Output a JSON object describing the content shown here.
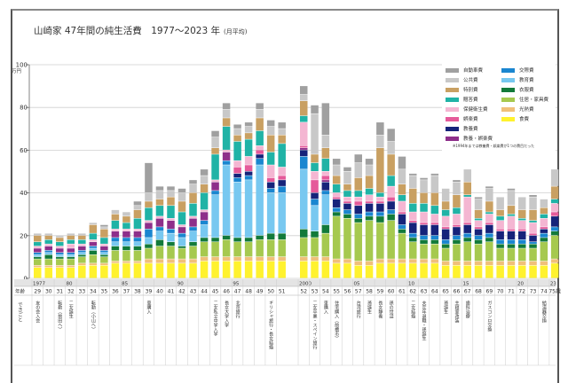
{
  "title": "山崎家 47年間の純生活費　1977〜2023 年",
  "title_note": "(月平均)",
  "chart_data": {
    "type": "bar",
    "stacked": true,
    "title": "山崎家 47年間の純生活費　1977〜2023 年 (月平均)",
    "ylabel": "万円",
    "ylim": [
      0,
      100
    ],
    "yticks": [
      "0",
      "20",
      "40",
      "60",
      "80",
      "100"
    ],
    "grid": true,
    "legend_position": "top-right",
    "legend_note": "※1994年までは教養費・娯楽費が1つの費目だった",
    "row_labels": {
      "year": "年",
      "age": "年齢",
      "events": "できごと"
    },
    "age_suffix": "歳",
    "year_ticks": {
      "1977": "1977",
      "1980": "80",
      "1985": "85",
      "1990": "90",
      "1995": "95",
      "2000": "2000",
      "2005": "05",
      "2010": "10",
      "2015": "15",
      "2020": "20",
      "2023": "23"
    },
    "years": [
      1977,
      1978,
      1979,
      1980,
      1981,
      1982,
      1983,
      1984,
      1985,
      1986,
      1987,
      1988,
      1989,
      1990,
      1991,
      1992,
      1993,
      1994,
      1995,
      1996,
      1997,
      1998,
      1999,
      2000,
      2001,
      2002,
      2003,
      2004,
      2005,
      2006,
      2007,
      2008,
      2009,
      2010,
      2011,
      2012,
      2013,
      2014,
      2015,
      2016,
      2017,
      2018,
      2019,
      2020,
      2021,
      2022,
      2023
    ],
    "ages": [
      29,
      30,
      31,
      32,
      33,
      34,
      35,
      36,
      37,
      38,
      39,
      40,
      41,
      42,
      43,
      44,
      45,
      46,
      47,
      48,
      49,
      50,
      51,
      52,
      53,
      54,
      55,
      56,
      57,
      58,
      59,
      60,
      61,
      62,
      63,
      64,
      65,
      66,
      67,
      68,
      69,
      70,
      71,
      72,
      73,
      74,
      75
    ],
    "events": {
      "29": "友の会入会",
      "31": "転勤（前田へ）",
      "32": "二女誕生",
      "34": "転勤（小山へ）",
      "39": "車購入",
      "45": "二女私立中学入学",
      "46": "長女大学入学",
      "47": "北京旅行",
      "50": "ギリシャ旅行・長女結婚",
      "53": "二女卒業・スペイン旅行",
      "54": "車購入",
      "55": "住宅購入（前橋市）",
      "57": "台湾旅行",
      "58": "孫誕生",
      "59": "長女静養",
      "60": "孫の世話",
      "62": "二女結婚",
      "63": "夫定年退職・孫誕生",
      "65": "孫誕生",
      "66": "主寝室改装",
      "67": "歯科治療",
      "69": "ガスコンロ交換",
      "74": "給湯器交換"
    },
    "totals": [
      21,
      21,
      20,
      20,
      21,
      26,
      25,
      32,
      30,
      36,
      54,
      43,
      45,
      42,
      47,
      51,
      69,
      82,
      72,
      73,
      82,
      78,
      73,
      94,
      83,
      87,
      56,
      49,
      58,
      54,
      73,
      72,
      52,
      49,
      47,
      49,
      42,
      44,
      51,
      37,
      43,
      38,
      38,
      38,
      37,
      39,
      55
    ],
    "series": [
      {
        "name": "食費",
        "color": "#fff22e",
        "values": [
          5,
          5,
          5,
          5,
          6,
          6,
          6,
          7,
          7,
          7,
          7,
          7,
          7,
          7,
          7,
          8,
          8,
          8,
          8,
          8,
          8,
          8,
          8,
          8,
          8,
          8,
          7,
          7,
          6,
          6,
          7,
          7,
          7,
          7,
          7,
          7,
          6,
          6,
          6,
          6,
          6,
          6,
          6,
          6,
          6,
          6,
          7
        ]
      },
      {
        "name": "光熱費",
        "color": "#f0c07a",
        "values": [
          1,
          1,
          1,
          1,
          1,
          1,
          1,
          1,
          1,
          1,
          2,
          2,
          2,
          2,
          2,
          2,
          2,
          2,
          2,
          2,
          2,
          2,
          2,
          2,
          2,
          2,
          2,
          2,
          2,
          2,
          2,
          2,
          2,
          2,
          2,
          2,
          2,
          2,
          2,
          2,
          2,
          2,
          2,
          2,
          2,
          2,
          2
        ]
      },
      {
        "name": "住居・家具費",
        "color": "#a6c94f",
        "values": [
          3,
          3,
          3,
          3,
          3,
          4,
          3,
          5,
          5,
          5,
          5,
          6,
          6,
          5,
          6,
          7,
          7,
          8,
          7,
          7,
          8,
          8,
          8,
          9,
          9,
          11,
          20,
          19,
          18,
          19,
          17,
          18,
          12,
          8,
          7,
          7,
          6,
          8,
          9,
          8,
          9,
          6,
          6,
          6,
          6,
          9,
          11
        ]
      },
      {
        "name": "衣服費",
        "color": "#127a3a",
        "values": [
          1,
          2,
          1,
          1,
          1,
          2,
          1,
          2,
          2,
          2,
          2,
          3,
          2,
          1,
          2,
          2,
          2,
          2,
          2,
          2,
          2,
          3,
          3,
          4,
          3,
          4,
          2,
          2,
          2,
          2,
          3,
          3,
          2,
          2,
          2,
          2,
          2,
          2,
          2,
          2,
          2,
          2,
          2,
          2,
          2,
          2,
          2
        ]
      },
      {
        "name": "教育費",
        "color": "#78c8f0",
        "values": [
          1,
          1,
          1,
          1,
          1,
          1,
          1,
          2,
          2,
          2,
          3,
          4,
          4,
          4,
          5,
          6,
          20,
          33,
          26,
          27,
          33,
          19,
          19,
          28,
          12,
          14,
          0,
          0,
          0,
          0,
          0,
          0,
          0,
          0,
          0,
          0,
          0,
          0,
          0,
          0,
          0,
          0,
          0,
          0,
          0,
          0,
          0
        ]
      },
      {
        "name": "交際費",
        "color": "#1a86d0",
        "values": [
          1,
          1,
          1,
          1,
          1,
          1,
          1,
          2,
          2,
          2,
          4,
          2,
          2,
          2,
          2,
          2,
          2,
          2,
          2,
          2,
          3,
          2,
          3,
          6,
          3,
          2,
          2,
          2,
          2,
          2,
          2,
          2,
          2,
          2,
          2,
          2,
          2,
          2,
          2,
          2,
          2,
          2,
          2,
          2,
          1,
          2,
          2
        ]
      },
      {
        "name": "教養費",
        "color": "#16237a",
        "values": [
          0,
          0,
          0,
          0,
          0,
          0,
          0,
          0,
          0,
          0,
          0,
          0,
          0,
          0,
          0,
          0,
          0,
          0,
          2,
          2,
          2,
          3,
          3,
          3,
          3,
          4,
          4,
          3,
          4,
          4,
          4,
          4,
          5,
          5,
          5,
          5,
          5,
          4,
          4,
          3,
          4,
          4,
          4,
          4,
          3,
          2,
          5
        ]
      },
      {
        "name": "教養・娯楽費",
        "color": "#8e2f8a",
        "values": [
          2,
          2,
          2,
          2,
          2,
          2,
          2,
          3,
          3,
          3,
          3,
          4,
          4,
          3,
          4,
          4,
          4,
          4,
          0,
          0,
          0,
          0,
          0,
          1,
          0,
          1,
          0,
          0,
          0,
          0,
          0,
          0,
          0,
          0,
          0,
          0,
          0,
          0,
          0,
          0,
          0,
          0,
          0,
          0,
          0,
          0,
          0
        ]
      },
      {
        "name": "娯楽費",
        "color": "#e55a9a",
        "values": [
          0,
          0,
          0,
          0,
          0,
          0,
          0,
          0,
          0,
          0,
          0,
          0,
          0,
          0,
          0,
          0,
          0,
          0,
          3,
          3,
          2,
          2,
          2,
          1,
          6,
          2,
          1,
          1,
          2,
          1,
          1,
          2,
          1,
          1,
          1,
          1,
          1,
          1,
          1,
          1,
          1,
          1,
          1,
          1,
          1,
          1,
          2
        ]
      },
      {
        "name": "保健衛生費",
        "color": "#f4b6d2",
        "values": [
          1,
          1,
          1,
          2,
          1,
          1,
          1,
          1,
          1,
          1,
          1,
          1,
          1,
          1,
          1,
          1,
          1,
          1,
          3,
          4,
          2,
          6,
          4,
          11,
          4,
          2,
          2,
          2,
          2,
          3,
          2,
          5,
          5,
          4,
          5,
          4,
          5,
          5,
          12,
          3,
          4,
          4,
          6,
          4,
          5,
          4,
          4
        ]
      },
      {
        "name": "贈答費",
        "color": "#20b3a6",
        "values": [
          2,
          2,
          2,
          2,
          2,
          3,
          3,
          4,
          3,
          5,
          6,
          5,
          6,
          6,
          6,
          8,
          12,
          11,
          9,
          8,
          7,
          6,
          11,
          3,
          4,
          6,
          4,
          3,
          3,
          3,
          2,
          5,
          3,
          4,
          4,
          4,
          3,
          3,
          1,
          1,
          1,
          2,
          1,
          1,
          1,
          2,
          2
        ]
      },
      {
        "name": "特別費",
        "color": "#c9a062",
        "values": [
          3,
          2,
          2,
          2,
          2,
          4,
          4,
          3,
          3,
          4,
          3,
          3,
          4,
          5,
          5,
          4,
          3,
          4,
          3,
          3,
          6,
          8,
          4,
          7,
          4,
          5,
          4,
          3,
          6,
          6,
          21,
          10,
          5,
          7,
          5,
          6,
          4,
          6,
          6,
          4,
          5,
          3,
          4,
          4,
          5,
          3,
          6
        ]
      },
      {
        "name": "公共費",
        "color": "#c8c8c8",
        "values": [
          1,
          1,
          1,
          1,
          1,
          1,
          1,
          2,
          2,
          2,
          4,
          4,
          3,
          4,
          4,
          4,
          5,
          4,
          3,
          3,
          4,
          4,
          3,
          3,
          19,
          6,
          5,
          6,
          7,
          5,
          6,
          6,
          7,
          6,
          6,
          8,
          6,
          6,
          6,
          5,
          6,
          6,
          7,
          6,
          6,
          4,
          8
        ]
      },
      {
        "name": "自動車費",
        "color": "#a0a0a0",
        "values": [
          0,
          0,
          0,
          0,
          0,
          0,
          1,
          0,
          0,
          2,
          14,
          2,
          2,
          2,
          2,
          3,
          3,
          3,
          2,
          2,
          3,
          3,
          3,
          4,
          4,
          15,
          3,
          2,
          4,
          3,
          6,
          6,
          6,
          1,
          1,
          1,
          0,
          1,
          0,
          1,
          1,
          0,
          1,
          0,
          1,
          0,
          0
        ]
      }
    ]
  },
  "legend": {
    "col1": [
      "自動車費",
      "公共費",
      "特別費",
      "贈答費",
      "保健衛生費",
      "娯楽費",
      "教養費",
      "教養・娯楽費"
    ],
    "col2": [
      "交際費",
      "教育費",
      "衣服費",
      "住居・家具費",
      "光熱費",
      "食費"
    ]
  }
}
